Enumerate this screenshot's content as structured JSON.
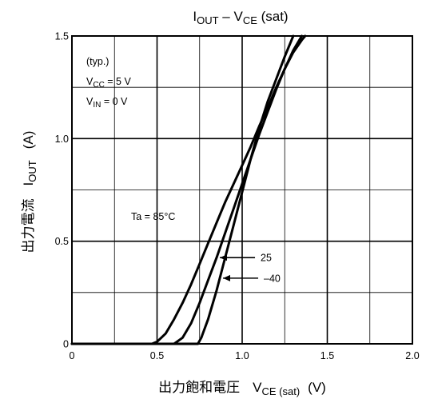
{
  "chart_data": {
    "type": "line",
    "title": {
      "main": "I",
      "sub1": "OUT",
      "mid": " – V",
      "sub2": "CE",
      "tail": " (sat)"
    },
    "xlabel": {
      "jp": "出力飽和電圧",
      "main": "V",
      "sub": "CE (sat)",
      "unit": "(V)"
    },
    "ylabel": {
      "jp": "出力電流",
      "main": "I",
      "sub": "OUT",
      "unit": "(A)"
    },
    "xlim": [
      0,
      2.0
    ],
    "ylim": [
      0,
      1.5
    ],
    "x_ticks": [
      0,
      0.5,
      1.0,
      1.5,
      2.0
    ],
    "x_tick_labels": [
      "0",
      "0.5",
      "1.0",
      "1.5",
      "2.0"
    ],
    "y_ticks": [
      0,
      0.5,
      1.0,
      1.5
    ],
    "y_tick_labels": [
      "0",
      "0.5",
      "1.0",
      "1.5"
    ],
    "grid": true,
    "conditions": [
      {
        "main": "(typ.)",
        "sub": "",
        "tail": ""
      },
      {
        "main": "V",
        "sub": "CC",
        "tail": " = 5 V"
      },
      {
        "main": "V",
        "sub": "IN",
        "tail": " = 0 V"
      }
    ],
    "series": [
      {
        "name": "Ta = 85°C",
        "x": [
          0.0,
          0.47,
          0.5,
          0.55,
          0.6,
          0.65,
          0.7,
          0.75,
          0.8,
          0.85,
          0.9,
          0.95,
          1.0,
          1.05,
          1.1,
          1.15,
          1.2,
          1.25,
          1.3,
          1.35
        ],
        "y": [
          0.0,
          0.0,
          0.01,
          0.05,
          0.12,
          0.2,
          0.29,
          0.39,
          0.49,
          0.59,
          0.69,
          0.78,
          0.87,
          0.96,
          1.06,
          1.15,
          1.25,
          1.34,
          1.43,
          1.5
        ]
      },
      {
        "name": "25",
        "x": [
          0.0,
          0.6,
          0.65,
          0.7,
          0.75,
          0.8,
          0.85,
          0.9,
          0.95,
          1.0,
          1.05,
          1.1,
          1.15,
          1.2,
          1.25,
          1.3,
          1.35,
          1.37
        ],
        "y": [
          0.0,
          0.0,
          0.03,
          0.1,
          0.2,
          0.31,
          0.42,
          0.54,
          0.66,
          0.78,
          0.9,
          1.02,
          1.13,
          1.24,
          1.34,
          1.42,
          1.48,
          1.5
        ]
      },
      {
        "name": "–40",
        "x": [
          0.0,
          0.74,
          0.76,
          0.8,
          0.85,
          0.9,
          0.95,
          1.0,
          1.05,
          1.1,
          1.15,
          1.2,
          1.25,
          1.3
        ],
        "y": [
          0.0,
          0.0,
          0.03,
          0.12,
          0.26,
          0.42,
          0.58,
          0.74,
          0.9,
          1.05,
          1.18,
          1.29,
          1.4,
          1.5
        ]
      }
    ],
    "annotations": [
      {
        "text": "Ta = 85°C",
        "series": "Ta = 85°C"
      },
      {
        "text": "25",
        "series": "25",
        "arrow": true,
        "at_y": 0.42
      },
      {
        "text": "–40",
        "series": "–40",
        "arrow": true,
        "at_y": 0.32
      }
    ]
  }
}
